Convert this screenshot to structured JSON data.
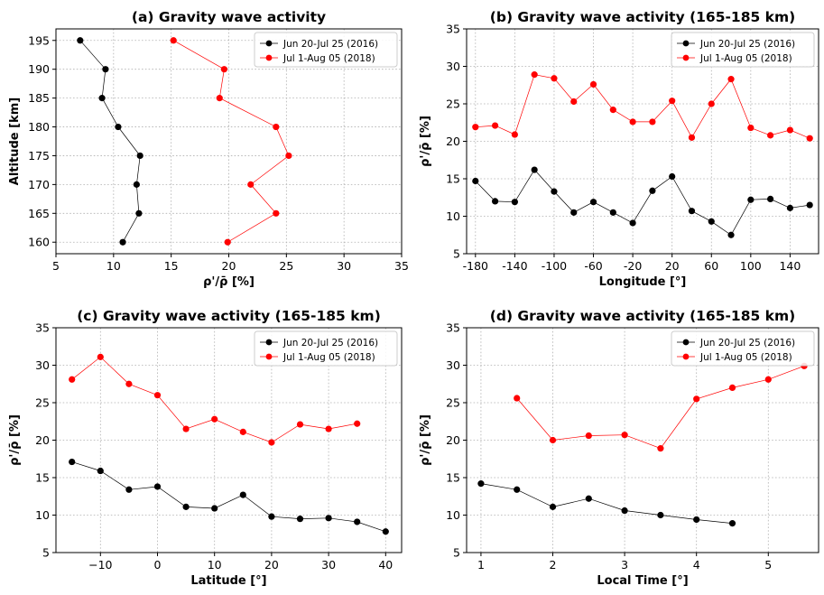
{
  "chart_data": [
    {
      "id": "a",
      "type": "line",
      "orientation": "horizontal",
      "title": "(a) Gravity wave activity",
      "xlabel": "ρ'/ρ̄ [%]",
      "ylabel": "Altitude [km]",
      "xlim": [
        5,
        35
      ],
      "ylim": [
        158,
        197
      ],
      "xticks": [
        5,
        10,
        15,
        20,
        25,
        30,
        35
      ],
      "xtick_labels": [
        "5",
        "10",
        "15",
        "20",
        "25",
        "30",
        "35"
      ],
      "yticks": [
        160,
        165,
        170,
        175,
        180,
        185,
        190,
        195
      ],
      "ytick_labels": [
        "160",
        "165",
        "170",
        "175",
        "180",
        "185",
        "190",
        "195"
      ],
      "legend_position": "top-right",
      "series": [
        {
          "name": "Jun 20-Jul 25 (2016)",
          "color": "#000000",
          "x": [
            10.8,
            12.2,
            12.0,
            12.3,
            10.4,
            9.0,
            9.3,
            7.1
          ],
          "y": [
            160,
            165,
            170,
            175,
            180,
            185,
            190,
            195
          ]
        },
        {
          "name": "Jul 1-Aug 05 (2018)",
          "color": "#ff0000",
          "x": [
            19.9,
            24.1,
            21.9,
            25.2,
            24.1,
            19.2,
            19.6,
            15.2
          ],
          "y": [
            160,
            165,
            170,
            175,
            180,
            185,
            190,
            195
          ]
        }
      ]
    },
    {
      "id": "b",
      "type": "line",
      "orientation": "vertical",
      "title": "(b) Gravity wave activity (165-185 km)",
      "xlabel": "Longitude [°]",
      "ylabel": "ρ'/ρ̄ [%]",
      "xlim": [
        -189,
        169
      ],
      "ylim": [
        5,
        35
      ],
      "xticks": [
        -180,
        -140,
        -100,
        -60,
        -20,
        20,
        60,
        100,
        140
      ],
      "xtick_labels": [
        "-180",
        "-140",
        "-100",
        "-60",
        "-20",
        "20",
        "60",
        "100",
        "140"
      ],
      "yticks": [
        5,
        10,
        15,
        20,
        25,
        30,
        35
      ],
      "ytick_labels": [
        "5",
        "10",
        "15",
        "20",
        "25",
        "30",
        "35"
      ],
      "legend_position": "top-right",
      "series": [
        {
          "name": "Jun 20-Jul 25 (2016)",
          "color": "#000000",
          "x": [
            -180,
            -160,
            -140,
            -120,
            -100,
            -80,
            -60,
            -40,
            -20,
            0,
            20,
            40,
            60,
            80,
            100,
            120,
            140,
            160
          ],
          "y": [
            14.7,
            12.0,
            11.9,
            16.2,
            13.3,
            10.5,
            11.9,
            10.5,
            9.1,
            13.4,
            15.3,
            10.7,
            9.3,
            7.5,
            12.2,
            12.3,
            11.1,
            11.5
          ]
        },
        {
          "name": "Jul 1-Aug 05 (2018)",
          "color": "#ff0000",
          "x": [
            -180,
            -160,
            -140,
            -120,
            -100,
            -80,
            -60,
            -40,
            -20,
            0,
            20,
            40,
            60,
            80,
            100,
            120,
            140,
            160
          ],
          "y": [
            21.9,
            22.1,
            20.9,
            28.9,
            28.4,
            25.3,
            27.6,
            24.2,
            22.6,
            22.6,
            25.4,
            20.5,
            25.0,
            28.3,
            21.8,
            20.8,
            21.5,
            20.4
          ]
        }
      ]
    },
    {
      "id": "c",
      "type": "line",
      "orientation": "vertical",
      "title": "(c) Gravity wave activity (165-185 km)",
      "xlabel": "Latitude [°]",
      "ylabel": "ρ'/ρ̄ [%]",
      "xlim": [
        -17.8,
        42.8
      ],
      "ylim": [
        5,
        35
      ],
      "xticks": [
        -10,
        0,
        10,
        20,
        30,
        40
      ],
      "xtick_labels": [
        "−10",
        "0",
        "10",
        "20",
        "30",
        "40"
      ],
      "yticks": [
        5,
        10,
        15,
        20,
        25,
        30,
        35
      ],
      "ytick_labels": [
        "5",
        "10",
        "15",
        "20",
        "25",
        "30",
        "35"
      ],
      "legend_position": "top-right",
      "series": [
        {
          "name": "Jun 20-Jul 25 (2016)",
          "color": "#000000",
          "x": [
            -15,
            -10,
            -5,
            0,
            5,
            10,
            15,
            20,
            25,
            30,
            35,
            40
          ],
          "y": [
            17.1,
            15.9,
            13.4,
            13.8,
            11.1,
            10.9,
            12.7,
            9.8,
            9.5,
            9.6,
            9.1,
            7.8
          ]
        },
        {
          "name": "Jul 1-Aug 05 (2018)",
          "color": "#ff0000",
          "x": [
            -15,
            -10,
            -5,
            0,
            5,
            10,
            15,
            20,
            25,
            30,
            35
          ],
          "y": [
            28.1,
            31.1,
            27.5,
            26.0,
            21.5,
            22.8,
            21.1,
            19.7,
            22.1,
            21.5,
            22.2
          ]
        }
      ]
    },
    {
      "id": "d",
      "type": "line",
      "orientation": "vertical",
      "title": "(d) Gravity wave activity (165-185 km)",
      "xlabel": "Local Time [°]",
      "ylabel": "ρ'/ρ̄ [%]",
      "xlim": [
        0.8,
        5.7
      ],
      "ylim": [
        5,
        35
      ],
      "xticks": [
        1,
        2,
        3,
        4,
        5
      ],
      "xtick_labels": [
        "1",
        "2",
        "3",
        "4",
        "5"
      ],
      "yticks": [
        5,
        10,
        15,
        20,
        25,
        30,
        35
      ],
      "ytick_labels": [
        "5",
        "10",
        "15",
        "20",
        "25",
        "30",
        "35"
      ],
      "legend_position": "top-right",
      "series": [
        {
          "name": "Jun 20-Jul 25 (2016)",
          "color": "#000000",
          "x": [
            1.0,
            1.5,
            2.0,
            2.5,
            3.0,
            3.5,
            4.0,
            4.5
          ],
          "y": [
            14.2,
            13.4,
            11.1,
            12.2,
            10.6,
            10.0,
            9.4,
            8.9
          ]
        },
        {
          "name": "Jul 1-Aug 05 (2018)",
          "color": "#ff0000",
          "x": [
            1.5,
            2.0,
            2.5,
            3.0,
            3.5,
            4.0,
            4.5,
            5.0,
            5.5
          ],
          "y": [
            25.6,
            20.0,
            20.6,
            20.7,
            18.9,
            25.5,
            27.0,
            28.1,
            29.9
          ]
        }
      ]
    }
  ]
}
